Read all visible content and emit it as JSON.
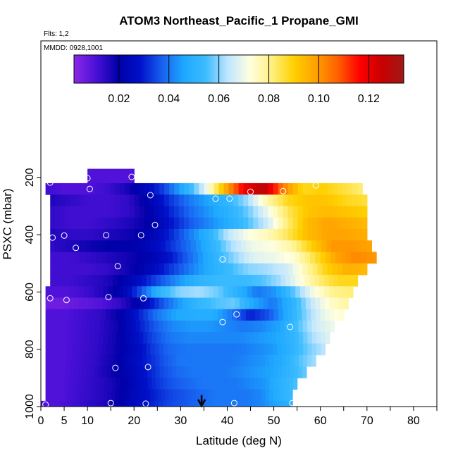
{
  "chart_data": {
    "type": "heatmap",
    "title": "ATOM3 Northeast_Pacific_1 Propane_GMI",
    "annotations": [
      "Flts: 1,2",
      "MMDD: 0928,1001"
    ],
    "xlabel": "Latitude (deg N)",
    "ylabel": "PSXC (mbar)",
    "xlim": [
      0,
      85
    ],
    "ylim": [
      1000,
      0
    ],
    "x_ticks": [
      0,
      5,
      10,
      20,
      30,
      40,
      50,
      60,
      70,
      80
    ],
    "y_ticks": [
      200,
      400,
      600,
      800,
      1000
    ],
    "colorbar": {
      "range": [
        0.002,
        0.134
      ],
      "ticks": [
        0.02,
        0.04,
        0.06,
        0.08,
        0.1,
        0.12
      ],
      "tick_labels": [
        "0.02",
        "0.04",
        "0.06",
        "0.08",
        "0.10",
        "0.12"
      ],
      "colors": [
        "#8c28e8",
        "#4a10d8",
        "#0000a8",
        "#0010c8",
        "#1860f0",
        "#1ea8ff",
        "#3cbcff",
        "#bfe6ff",
        "#ffffe0",
        "#fff080",
        "#ffd000",
        "#ffa000",
        "#ff6000",
        "#ff0000",
        "#c80000",
        "#a01818"
      ]
    },
    "profiles": [
      {
        "lat_start": 10,
        "lat_end": 20,
        "p_top": 170,
        "p_bot": 220,
        "values": [
          0.01
        ]
      },
      {
        "lat_start": 1,
        "lat_end": 69,
        "p_top": 220,
        "p_bot": 260,
        "values": [
          0.012,
          0.01,
          0.01,
          0.012,
          0.016,
          0.024,
          0.034,
          0.048,
          0.066,
          0.094,
          0.118,
          0.128,
          0.104,
          0.088,
          0.09,
          0.086,
          0.082
        ]
      },
      {
        "lat_start": 2,
        "lat_end": 70,
        "p_top": 260,
        "p_bot": 300,
        "values": [
          0.016,
          0.014,
          0.012,
          0.012,
          0.014,
          0.022,
          0.032,
          0.04,
          0.046,
          0.052,
          0.062,
          0.078,
          0.088,
          0.092,
          0.092,
          0.088,
          0.086
        ]
      },
      {
        "lat_start": 2,
        "lat_end": 70,
        "p_top": 300,
        "p_bot": 340,
        "values": [
          0.014,
          0.012,
          0.012,
          0.012,
          0.014,
          0.02,
          0.03,
          0.038,
          0.044,
          0.05,
          0.058,
          0.07,
          0.084,
          0.092,
          0.094,
          0.092,
          0.09
        ]
      },
      {
        "lat_start": 2,
        "lat_end": 70,
        "p_top": 340,
        "p_bot": 380,
        "values": [
          0.014,
          0.012,
          0.012,
          0.014,
          0.016,
          0.02,
          0.028,
          0.036,
          0.042,
          0.048,
          0.056,
          0.066,
          0.082,
          0.094,
          0.098,
          0.096,
          0.094
        ]
      },
      {
        "lat_start": 2,
        "lat_end": 70,
        "p_top": 380,
        "p_bot": 420,
        "values": [
          0.016,
          0.014,
          0.014,
          0.016,
          0.018,
          0.022,
          0.03,
          0.04,
          0.05,
          0.064,
          0.072,
          0.076,
          0.084,
          0.094,
          0.098,
          0.098,
          0.096
        ]
      },
      {
        "lat_start": 2,
        "lat_end": 71,
        "p_top": 420,
        "p_bot": 460,
        "values": [
          0.014,
          0.016,
          0.018,
          0.02,
          0.02,
          0.024,
          0.032,
          0.04,
          0.05,
          0.062,
          0.07,
          0.072,
          0.078,
          0.09,
          0.1,
          0.1,
          0.098
        ]
      },
      {
        "lat_start": 2,
        "lat_end": 72,
        "p_top": 460,
        "p_bot": 500,
        "values": [
          0.012,
          0.012,
          0.014,
          0.016,
          0.018,
          0.022,
          0.03,
          0.04,
          0.05,
          0.06,
          0.068,
          0.07,
          0.074,
          0.086,
          0.098,
          0.102,
          0.1
        ]
      },
      {
        "lat_start": 2,
        "lat_end": 70,
        "p_top": 500,
        "p_bot": 540,
        "values": [
          0.012,
          0.012,
          0.012,
          0.014,
          0.018,
          0.024,
          0.032,
          0.04,
          0.048,
          0.054,
          0.06,
          0.062,
          0.066,
          0.078,
          0.09,
          0.096,
          0.094
        ]
      },
      {
        "lat_start": 2,
        "lat_end": 68,
        "p_top": 540,
        "p_bot": 580,
        "values": [
          0.012,
          0.012,
          0.014,
          0.016,
          0.022,
          0.03,
          0.038,
          0.046,
          0.052,
          0.054,
          0.054,
          0.056,
          0.062,
          0.072,
          0.082,
          0.088,
          0.088
        ]
      },
      {
        "lat_start": 1,
        "lat_end": 67,
        "p_top": 580,
        "p_bot": 620,
        "values": [
          0.01,
          0.01,
          0.012,
          0.016,
          0.022,
          0.036,
          0.052,
          0.06,
          0.062,
          0.058,
          0.05,
          0.04,
          0.044,
          0.058,
          0.072,
          0.08,
          0.082
        ]
      },
      {
        "lat_start": 1,
        "lat_end": 66,
        "p_top": 620,
        "p_bot": 660,
        "values": [
          0.006,
          0.006,
          0.008,
          0.01,
          0.014,
          0.022,
          0.034,
          0.044,
          0.052,
          0.056,
          0.058,
          0.046,
          0.04,
          0.05,
          0.064,
          0.074,
          0.078
        ]
      },
      {
        "lat_start": 1,
        "lat_end": 65,
        "p_top": 660,
        "p_bot": 700,
        "values": [
          0.01,
          0.01,
          0.012,
          0.014,
          0.02,
          0.03,
          0.04,
          0.046,
          0.048,
          0.048,
          0.04,
          0.03,
          0.036,
          0.048,
          0.06,
          0.07,
          0.074
        ]
      },
      {
        "lat_start": 1,
        "lat_end": 63,
        "p_top": 700,
        "p_bot": 740,
        "values": [
          0.01,
          0.01,
          0.012,
          0.014,
          0.018,
          0.028,
          0.036,
          0.042,
          0.044,
          0.044,
          0.042,
          0.04,
          0.042,
          0.046,
          0.056,
          0.066,
          0.07
        ]
      },
      {
        "lat_start": 1,
        "lat_end": 62,
        "p_top": 740,
        "p_bot": 780,
        "values": [
          0.01,
          0.01,
          0.012,
          0.014,
          0.018,
          0.026,
          0.034,
          0.04,
          0.042,
          0.042,
          0.042,
          0.042,
          0.044,
          0.046,
          0.052,
          0.062,
          0.068
        ]
      },
      {
        "lat_start": 1,
        "lat_end": 61,
        "p_top": 780,
        "p_bot": 820,
        "values": [
          0.01,
          0.01,
          0.012,
          0.014,
          0.018,
          0.024,
          0.032,
          0.038,
          0.04,
          0.04,
          0.04,
          0.04,
          0.042,
          0.044,
          0.05,
          0.058,
          0.064
        ]
      },
      {
        "lat_start": 1,
        "lat_end": 59,
        "p_top": 820,
        "p_bot": 860,
        "values": [
          0.01,
          0.01,
          0.012,
          0.014,
          0.018,
          0.024,
          0.03,
          0.036,
          0.04,
          0.04,
          0.04,
          0.04,
          0.042,
          0.044,
          0.048,
          0.056,
          0.062
        ]
      },
      {
        "lat_start": 1,
        "lat_end": 57,
        "p_top": 860,
        "p_bot": 900,
        "values": [
          0.01,
          0.01,
          0.012,
          0.014,
          0.018,
          0.022,
          0.028,
          0.034,
          0.038,
          0.04,
          0.04,
          0.04,
          0.042,
          0.044,
          0.046,
          0.052,
          0.058
        ]
      },
      {
        "lat_start": 1,
        "lat_end": 55,
        "p_top": 900,
        "p_bot": 940,
        "values": [
          0.01,
          0.01,
          0.012,
          0.014,
          0.016,
          0.02,
          0.026,
          0.032,
          0.036,
          0.038,
          0.04,
          0.04,
          0.04,
          0.042,
          0.044,
          0.05,
          0.056
        ]
      },
      {
        "lat_start": 1,
        "lat_end": 54,
        "p_top": 940,
        "p_bot": 980,
        "values": [
          0.01,
          0.01,
          0.012,
          0.014,
          0.016,
          0.02,
          0.026,
          0.03,
          0.034,
          0.036,
          0.038,
          0.04,
          0.04,
          0.04,
          0.042,
          0.048,
          0.054
        ]
      },
      {
        "lat_start": 0,
        "lat_end": 54,
        "p_top": 980,
        "p_bot": 1000,
        "values": [
          0.01,
          0.01,
          0.012,
          0.014,
          0.016,
          0.02,
          0.026,
          0.03,
          0.034,
          0.036,
          0.038,
          0.04,
          0.04,
          0.04,
          0.042,
          0.046,
          0.05
        ]
      }
    ],
    "observations": [
      {
        "lat": 2,
        "p": 218
      },
      {
        "lat": 10,
        "p": 203
      },
      {
        "lat": 19.5,
        "p": 198
      },
      {
        "lat": 10.5,
        "p": 240
      },
      {
        "lat": 23.5,
        "p": 262
      },
      {
        "lat": 37.5,
        "p": 274
      },
      {
        "lat": 40.5,
        "p": 274
      },
      {
        "lat": 45,
        "p": 250
      },
      {
        "lat": 52,
        "p": 248
      },
      {
        "lat": 59,
        "p": 228
      },
      {
        "lat": 24.5,
        "p": 366
      },
      {
        "lat": 2.5,
        "p": 410
      },
      {
        "lat": 5,
        "p": 403
      },
      {
        "lat": 14,
        "p": 402
      },
      {
        "lat": 21.5,
        "p": 402
      },
      {
        "lat": 7.5,
        "p": 446
      },
      {
        "lat": 39,
        "p": 486
      },
      {
        "lat": 53,
        "p": 481
      },
      {
        "lat": 16.5,
        "p": 510
      },
      {
        "lat": 0.5,
        "p": 510
      },
      {
        "lat": 2,
        "p": 622
      },
      {
        "lat": 5.5,
        "p": 628
      },
      {
        "lat": 14.5,
        "p": 618
      },
      {
        "lat": 22,
        "p": 622
      },
      {
        "lat": 42,
        "p": 678
      },
      {
        "lat": 39,
        "p": 705
      },
      {
        "lat": 53.5,
        "p": 722
      },
      {
        "lat": 16,
        "p": 865
      },
      {
        "lat": 23,
        "p": 862
      },
      {
        "lat": 1,
        "p": 993
      },
      {
        "lat": 15,
        "p": 988
      },
      {
        "lat": 22.5,
        "p": 990
      },
      {
        "lat": 41.5,
        "p": 988
      },
      {
        "lat": 54,
        "p": 988
      }
    ],
    "marker": {
      "lat": 34.5,
      "p": 960,
      "direction": "down"
    }
  }
}
